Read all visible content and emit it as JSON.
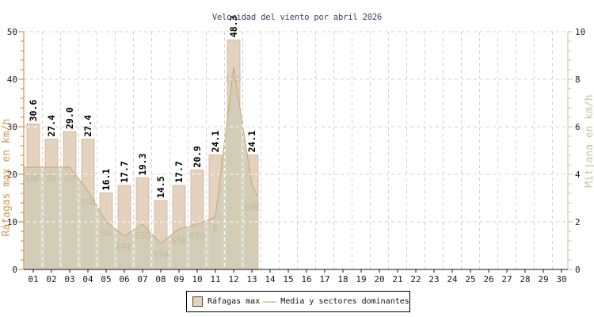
{
  "chart_data": {
    "type": "bar",
    "title": "Velocidad del viento por abril 2026",
    "categories": [
      "01",
      "02",
      "03",
      "04",
      "05",
      "06",
      "07",
      "08",
      "09",
      "10",
      "11",
      "12",
      "13",
      "14",
      "15",
      "16",
      "17",
      "18",
      "19",
      "20",
      "21",
      "22",
      "23",
      "24",
      "25",
      "26",
      "27",
      "28",
      "29",
      "30"
    ],
    "series": [
      {
        "name": "Ráfagas max",
        "type": "bar",
        "axis": "left",
        "values": [
          30.6,
          27.4,
          29.0,
          27.4,
          16.1,
          17.7,
          19.3,
          14.5,
          17.7,
          20.9,
          24.1,
          48.3,
          24.1
        ]
      },
      {
        "name": "Media y sectores dominantes",
        "type": "area",
        "axis": "right",
        "values": [
          4.3,
          4.3,
          4.3,
          3.3,
          2.0,
          1.4,
          1.9,
          1.1,
          1.7,
          1.9,
          2.2,
          8.5,
          3.6
        ],
        "sectors": [
          "ENE",
          "SO",
          "SO",
          "SSO",
          "SO",
          "ESE",
          "SSO",
          "SSO",
          "SSO",
          "OSO",
          "E",
          "ENE",
          "ENE"
        ]
      }
    ],
    "left_axis": {
      "label": "Ráfagas max en km/h",
      "range": [
        0,
        50
      ],
      "ticks": [
        0,
        10,
        20,
        30,
        40,
        50
      ],
      "minor_step": 2
    },
    "right_axis": {
      "label": "Mitjana en km/h",
      "range": [
        0,
        10
      ],
      "ticks": [
        0,
        2,
        4,
        6,
        8,
        10
      ],
      "minor_step": 0.4
    },
    "grid": true,
    "legend_position": "bottom"
  },
  "colors": {
    "background": "#ffffff",
    "title": "#3c4468",
    "bar_fill": "#e4d1be",
    "bar_border": "#c9b49c",
    "area_fill": "rgba(208,205,183,0.85)",
    "line": "#cba470",
    "sector_label": "#c2b9a0",
    "grid": "#d2d2d2",
    "grid_over": "#ffffff",
    "axis_left": "#cc7f33",
    "axis_left_label": "#cf9850",
    "axis_right": "#c9c3a2",
    "axis_right_label": "#ccc6a2",
    "axis_x": "#111111",
    "tick_text": "#1a1a1a",
    "value_label": "#000000"
  }
}
